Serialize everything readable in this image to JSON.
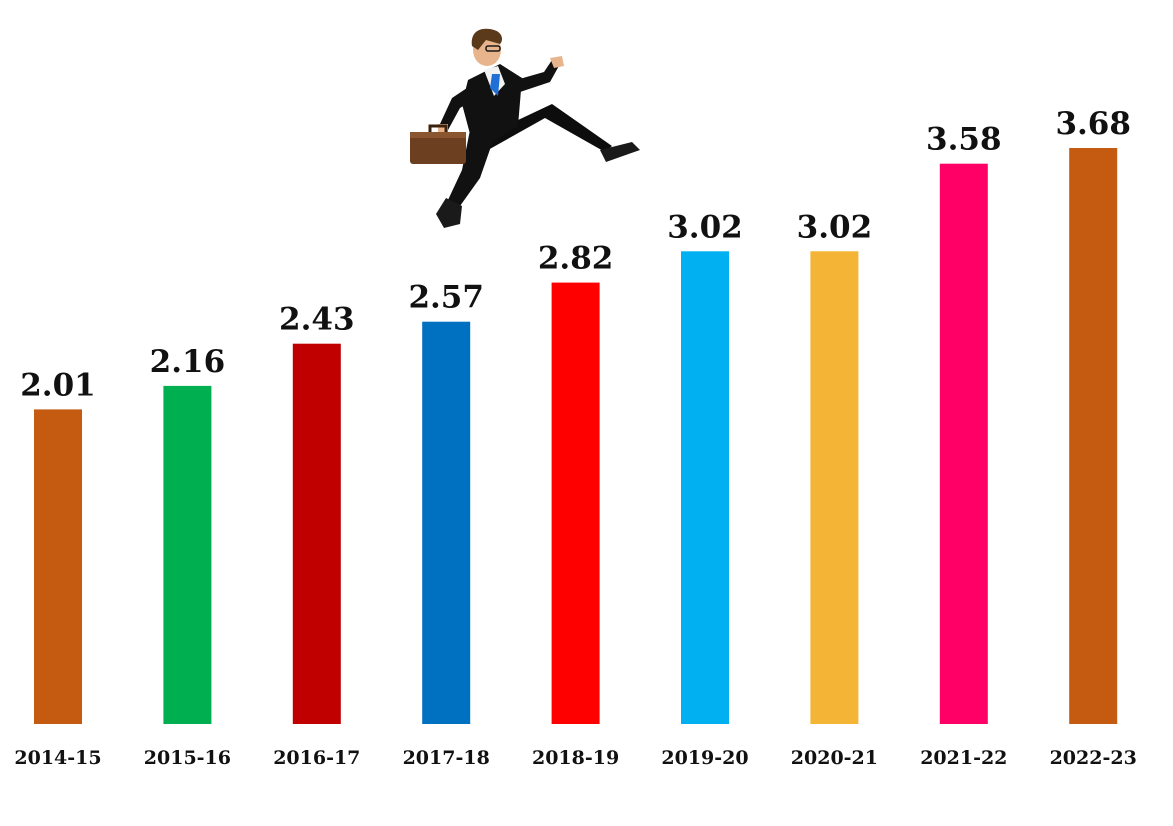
{
  "chart_data": {
    "type": "bar",
    "categories": [
      "2014-15",
      "2015-16",
      "2016-17",
      "2017-18",
      "2018-19",
      "2019-20",
      "2020-21",
      "2021-22",
      "2022-23"
    ],
    "values": [
      2.01,
      2.16,
      2.43,
      2.57,
      2.82,
      3.02,
      3.02,
      3.58,
      3.68
    ],
    "value_labels": [
      "2.01",
      "2.16",
      "2.43",
      "2.57",
      "2.82",
      "3.02",
      "3.02",
      "3.58",
      "3.68"
    ],
    "colors": [
      "#C55A11",
      "#00B050",
      "#C00000",
      "#0070C0",
      "#FF0000",
      "#00B0F0",
      "#F4B536",
      "#FF0066",
      "#C55A11"
    ],
    "ylim": [
      0,
      3.68
    ],
    "grid": false,
    "legend": false,
    "title": "",
    "xlabel": "",
    "ylabel": ""
  },
  "illustration": {
    "icon": "running-businessman-icon"
  }
}
